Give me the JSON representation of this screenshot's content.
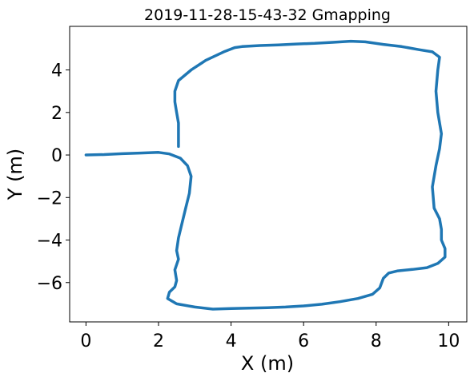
{
  "chart_data": {
    "type": "line",
    "title": "2019-11-28-15-43-32   Gmapping",
    "xlabel": "X (m)",
    "ylabel": "Y (m)",
    "xlim": [
      -0.45,
      10.5
    ],
    "ylim": [
      -7.85,
      6.05
    ],
    "xticks": [
      0,
      2,
      4,
      6,
      8,
      10
    ],
    "yticks": [
      4,
      2,
      0,
      -2,
      -4,
      -6
    ],
    "xtick_labels": [
      "0",
      "2",
      "4",
      "6",
      "8",
      "10"
    ],
    "ytick_labels": [
      "4",
      "2",
      "0",
      "−2",
      "−4",
      "−6"
    ],
    "grid": false,
    "series": [
      {
        "color": "#1f77b4",
        "points": [
          [
            0.0,
            0.0
          ],
          [
            0.5,
            0.02
          ],
          [
            1.0,
            0.06
          ],
          [
            1.5,
            0.09
          ],
          [
            2.0,
            0.12
          ],
          [
            2.3,
            0.05
          ],
          [
            2.6,
            -0.15
          ],
          [
            2.8,
            -0.5
          ],
          [
            2.9,
            -1.0
          ],
          [
            2.85,
            -1.8
          ],
          [
            2.75,
            -2.5
          ],
          [
            2.65,
            -3.2
          ],
          [
            2.55,
            -3.9
          ],
          [
            2.5,
            -4.5
          ],
          [
            2.55,
            -4.9
          ],
          [
            2.45,
            -5.4
          ],
          [
            2.5,
            -5.9
          ],
          [
            2.45,
            -6.2
          ],
          [
            2.3,
            -6.45
          ],
          [
            2.25,
            -6.75
          ],
          [
            2.5,
            -7.0
          ],
          [
            3.0,
            -7.15
          ],
          [
            3.5,
            -7.25
          ],
          [
            4.0,
            -7.22
          ],
          [
            4.5,
            -7.2
          ],
          [
            5.0,
            -7.18
          ],
          [
            5.5,
            -7.15
          ],
          [
            6.0,
            -7.1
          ],
          [
            6.5,
            -7.02
          ],
          [
            7.0,
            -6.9
          ],
          [
            7.5,
            -6.75
          ],
          [
            7.9,
            -6.55
          ],
          [
            8.1,
            -6.25
          ],
          [
            8.2,
            -5.8
          ],
          [
            8.35,
            -5.55
          ],
          [
            8.6,
            -5.45
          ],
          [
            9.0,
            -5.38
          ],
          [
            9.4,
            -5.3
          ],
          [
            9.7,
            -5.1
          ],
          [
            9.9,
            -4.8
          ],
          [
            9.9,
            -4.4
          ],
          [
            9.8,
            -4.0
          ],
          [
            9.8,
            -3.5
          ],
          [
            9.75,
            -3.0
          ],
          [
            9.6,
            -2.5
          ],
          [
            9.55,
            -1.5
          ],
          [
            9.65,
            -0.5
          ],
          [
            9.75,
            0.3
          ],
          [
            9.8,
            1.0
          ],
          [
            9.7,
            2.0
          ],
          [
            9.65,
            3.0
          ],
          [
            9.7,
            4.0
          ],
          [
            9.75,
            4.6
          ],
          [
            9.55,
            4.85
          ],
          [
            9.2,
            4.95
          ],
          [
            8.7,
            5.1
          ],
          [
            8.2,
            5.2
          ],
          [
            7.7,
            5.32
          ],
          [
            7.3,
            5.35
          ],
          [
            6.8,
            5.3
          ],
          [
            6.3,
            5.25
          ],
          [
            5.8,
            5.22
          ],
          [
            5.3,
            5.18
          ],
          [
            4.8,
            5.15
          ],
          [
            4.3,
            5.1
          ],
          [
            4.1,
            5.05
          ],
          [
            3.8,
            4.85
          ],
          [
            3.3,
            4.45
          ],
          [
            2.9,
            4.0
          ],
          [
            2.55,
            3.5
          ],
          [
            2.45,
            3.0
          ],
          [
            2.45,
            2.5
          ],
          [
            2.5,
            2.0
          ],
          [
            2.55,
            1.5
          ],
          [
            2.55,
            1.0
          ],
          [
            2.55,
            0.4
          ]
        ]
      }
    ]
  }
}
